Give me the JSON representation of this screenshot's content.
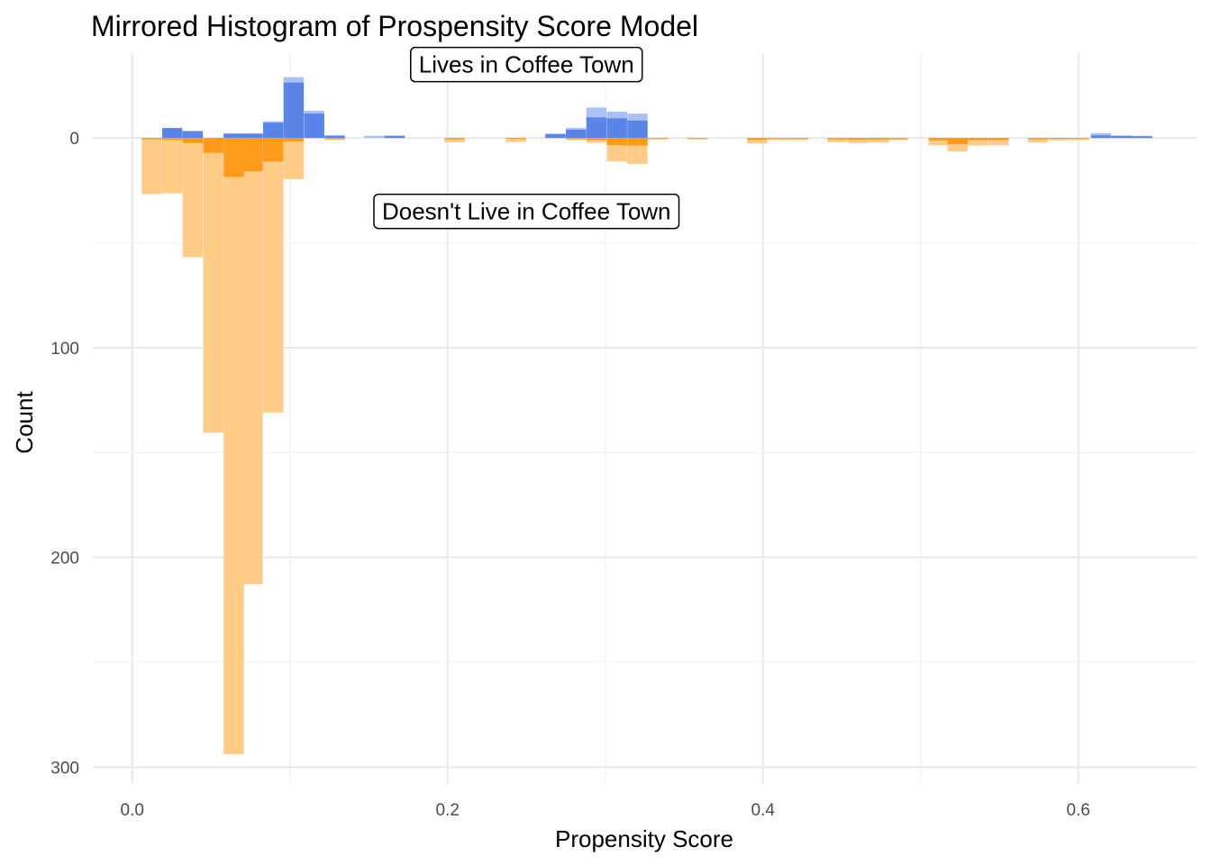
{
  "chart_data": {
    "type": "bar",
    "subtype": "mirrored-histogram",
    "title": "Mirrored Histogram of Prospensity Score Model",
    "xlabel": "Propensity Score",
    "ylabel": "Count",
    "xlim": [
      -0.025,
      0.675
    ],
    "ylim": [
      -40,
      308
    ],
    "y_reversed": true,
    "x_ticks": [
      0.0,
      0.2,
      0.4,
      0.6
    ],
    "x_tick_labels": [
      "0.0",
      "0.2",
      "0.4",
      "0.6"
    ],
    "y_ticks": [
      0,
      100,
      200,
      300
    ],
    "y_tick_labels": [
      "0",
      "100",
      "200",
      "300"
    ],
    "grid": true,
    "legend": "none",
    "bin_width": 0.0128,
    "colors": {
      "lives_weighted": "#a9c1f2",
      "lives_unweighted": "#5a84e8",
      "not_lives_weighted": "#ffcc88",
      "not_lives_unweighted": "#ff9a1a"
    },
    "series": [
      {
        "group": "lives",
        "kind": "weighted",
        "bins": [
          [
            0.019,
            4.7
          ],
          [
            0.032,
            3.5
          ],
          [
            0.058,
            2.2
          ],
          [
            0.07,
            2.2
          ],
          [
            0.083,
            7.9
          ],
          [
            0.096,
            29.0
          ],
          [
            0.109,
            13.0
          ],
          [
            0.122,
            1.3
          ],
          [
            0.147,
            1.0
          ],
          [
            0.16,
            1.1
          ],
          [
            0.262,
            2.0
          ],
          [
            0.275,
            4.8
          ],
          [
            0.288,
            14.5
          ],
          [
            0.301,
            12.5
          ],
          [
            0.314,
            11.6
          ],
          [
            0.608,
            2.3
          ],
          [
            0.621,
            1.1
          ],
          [
            0.634,
            1.0
          ]
        ]
      },
      {
        "group": "lives",
        "kind": "unweighted",
        "bins": [
          [
            0.019,
            4.7
          ],
          [
            0.032,
            3.1
          ],
          [
            0.058,
            2.0
          ],
          [
            0.07,
            2.0
          ],
          [
            0.083,
            7.3
          ],
          [
            0.096,
            26.4
          ],
          [
            0.109,
            11.6
          ],
          [
            0.122,
            1.0
          ],
          [
            0.16,
            1.0
          ],
          [
            0.262,
            1.9
          ],
          [
            0.275,
            3.9
          ],
          [
            0.288,
            9.8
          ],
          [
            0.301,
            9.4
          ],
          [
            0.314,
            8.3
          ],
          [
            0.608,
            1.2
          ],
          [
            0.621,
            1.0
          ],
          [
            0.634,
            0.8
          ]
        ]
      },
      {
        "group": "not_lives",
        "kind": "weighted",
        "bins": [
          [
            0.006,
            26.8
          ],
          [
            0.019,
            26.4
          ],
          [
            0.032,
            56.8
          ],
          [
            0.045,
            140.6
          ],
          [
            0.058,
            293.8
          ],
          [
            0.07,
            212.8
          ],
          [
            0.083,
            130.9
          ],
          [
            0.096,
            19.6
          ],
          [
            0.122,
            1.0
          ],
          [
            0.198,
            2.0
          ],
          [
            0.237,
            1.9
          ],
          [
            0.275,
            1.0
          ],
          [
            0.288,
            2.3
          ],
          [
            0.301,
            11.2
          ],
          [
            0.314,
            12.4
          ],
          [
            0.327,
            0.7
          ],
          [
            0.352,
            0.7
          ],
          [
            0.39,
            2.6
          ],
          [
            0.403,
            1.0
          ],
          [
            0.416,
            1.0
          ],
          [
            0.441,
            2.0
          ],
          [
            0.454,
            2.4
          ],
          [
            0.467,
            2.2
          ],
          [
            0.479,
            1.0
          ],
          [
            0.505,
            3.5
          ],
          [
            0.517,
            6.5
          ],
          [
            0.53,
            3.6
          ],
          [
            0.543,
            3.4
          ],
          [
            0.568,
            2.2
          ],
          [
            0.581,
            1.1
          ],
          [
            0.594,
            1.0
          ]
        ]
      },
      {
        "group": "not_lives",
        "kind": "unweighted",
        "bins": [
          [
            0.006,
            0.6
          ],
          [
            0.019,
            1.0
          ],
          [
            0.032,
            2.4
          ],
          [
            0.045,
            7.1
          ],
          [
            0.058,
            18.6
          ],
          [
            0.07,
            15.9
          ],
          [
            0.083,
            11.3
          ],
          [
            0.096,
            1.6
          ],
          [
            0.122,
            0.5
          ],
          [
            0.198,
            0.6
          ],
          [
            0.237,
            0.5
          ],
          [
            0.275,
            0.6
          ],
          [
            0.288,
            1.1
          ],
          [
            0.301,
            3.4
          ],
          [
            0.314,
            3.6
          ],
          [
            0.327,
            0.4
          ],
          [
            0.352,
            0.4
          ],
          [
            0.39,
            0.9
          ],
          [
            0.403,
            0.4
          ],
          [
            0.416,
            0.4
          ],
          [
            0.441,
            0.6
          ],
          [
            0.454,
            0.8
          ],
          [
            0.467,
            0.7
          ],
          [
            0.479,
            0.5
          ],
          [
            0.505,
            1.2
          ],
          [
            0.517,
            3.0
          ],
          [
            0.53,
            1.0
          ],
          [
            0.543,
            0.9
          ],
          [
            0.568,
            0.6
          ],
          [
            0.581,
            0.4
          ],
          [
            0.594,
            0.4
          ]
        ]
      }
    ],
    "annotations": [
      {
        "text": "Lives in Coffee Town",
        "x": 0.25,
        "y": -35
      },
      {
        "text": "Doesn't Live in Coffee Town",
        "x": 0.25,
        "y": 35
      }
    ]
  }
}
